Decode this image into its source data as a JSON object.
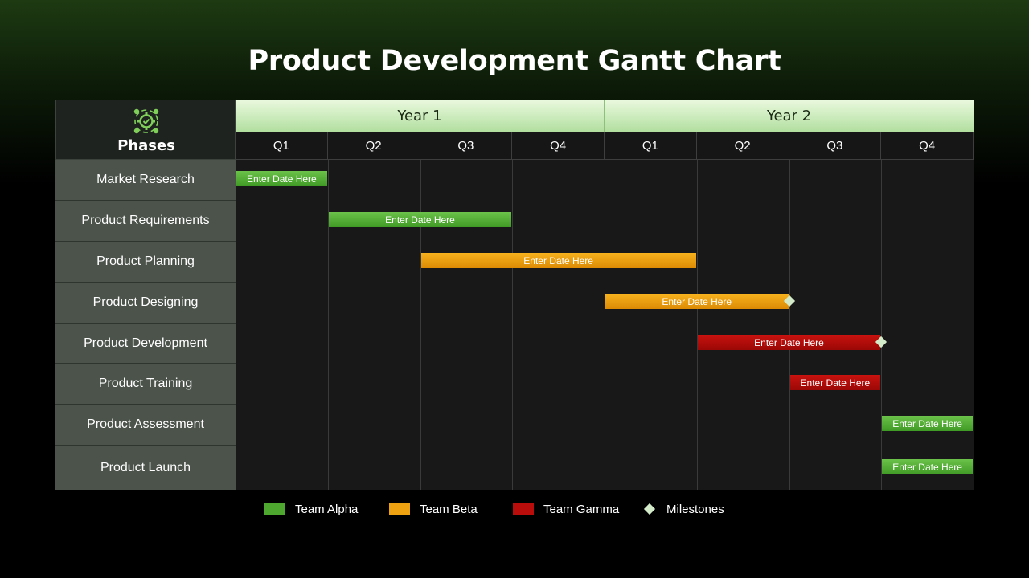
{
  "title": "Product Development Gantt Chart",
  "header": {
    "phases_label": "Phases",
    "logo_icon": "gear-check-network-icon"
  },
  "chart_data": {
    "type": "gantt",
    "title": "Product Development Gantt Chart",
    "years": [
      "Year 1",
      "Year 2"
    ],
    "quarters": [
      "Q1",
      "Q2",
      "Q3",
      "Q4",
      "Q1",
      "Q2",
      "Q3",
      "Q4"
    ],
    "phases": [
      "Market Research",
      "Product Requirements",
      "Product Planning",
      "Product Designing",
      "Product Development",
      "Product Training",
      "Product Assessment",
      "Product Launch"
    ],
    "tasks": [
      {
        "phase": "Market Research",
        "start_quarter": 1,
        "end_quarter": 1,
        "team": "Team Alpha",
        "label": "Enter Date Here",
        "milestone": false
      },
      {
        "phase": "Product Requirements",
        "start_quarter": 2,
        "end_quarter": 3,
        "team": "Team Alpha",
        "label": "Enter Date Here",
        "milestone": false
      },
      {
        "phase": "Product Planning",
        "start_quarter": 3,
        "end_quarter": 5,
        "team": "Team Beta",
        "label": "Enter Date Here",
        "milestone": false
      },
      {
        "phase": "Product Designing",
        "start_quarter": 5,
        "end_quarter": 6,
        "team": "Team Beta",
        "label": "Enter Date Here",
        "milestone": true
      },
      {
        "phase": "Product Development",
        "start_quarter": 6,
        "end_quarter": 7,
        "team": "Team Gamma",
        "label": "Enter Date Here",
        "milestone": true
      },
      {
        "phase": "Product Training",
        "start_quarter": 7,
        "end_quarter": 7,
        "team": "Team Gamma",
        "label": "Enter Date Here",
        "milestone": false
      },
      {
        "phase": "Product Assessment",
        "start_quarter": 8,
        "end_quarter": 8,
        "team": "Team Alpha",
        "label": "Enter Date Here",
        "milestone": false
      },
      {
        "phase": "Product Launch",
        "start_quarter": 8,
        "end_quarter": 8,
        "team": "Team Alpha",
        "label": "Enter Date Here",
        "milestone": false
      }
    ],
    "legend": [
      {
        "name": "Team Alpha",
        "kind": "swatch",
        "color": "#4ea82f"
      },
      {
        "name": "Team Beta",
        "kind": "swatch",
        "color": "#eea111"
      },
      {
        "name": "Team Gamma",
        "kind": "swatch",
        "color": "#b80d0b"
      },
      {
        "name": "Milestones",
        "kind": "diamond",
        "color": "#d3ebc9"
      }
    ],
    "legend_placement": "bottom-center",
    "grid": true
  },
  "colors": {
    "team_alpha": "#4ea82f",
    "team_beta": "#eea111",
    "team_gamma": "#b80d0b",
    "milestone": "#d3ebc9",
    "year_header": "#c9ebb8",
    "phase_cell": "#4b534b"
  }
}
